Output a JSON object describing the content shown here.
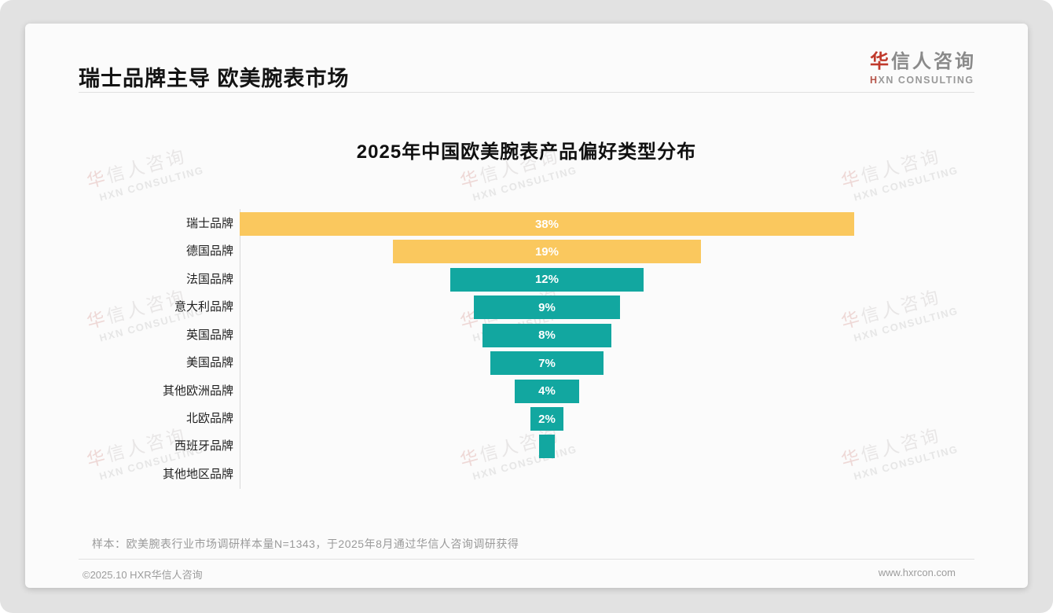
{
  "page": {
    "header": {
      "title": "瑞士品牌主导 欧美腕表市场"
    },
    "logo": {
      "zh_accent": "华",
      "zh_rest": "信人咨询",
      "en_accent": "H",
      "en_rest": "XN CONSULTING"
    },
    "watermark": {
      "zh_accent": "华",
      "zh_rest": "信人咨询",
      "en": "HXN CONSULTING"
    },
    "note": "样本：欧美腕表行业市场调研样本量N=1343，于2025年8月通过华信人咨询调研获得",
    "footer": {
      "left": "©2025.10 HXR华信人咨询",
      "right": "www.hxrcon.com"
    }
  },
  "chart_data": {
    "type": "bar",
    "subtype": "centered-funnel-horizontal",
    "title": "2025年中国欧美腕表产品偏好类型分布",
    "categories": [
      "瑞士品牌",
      "德国品牌",
      "法国品牌",
      "意大利品牌",
      "英国品牌",
      "美国品牌",
      "其他欧洲品牌",
      "北欧品牌",
      "西班牙品牌",
      "其他地区品牌"
    ],
    "values": [
      38,
      19,
      12,
      9,
      8,
      7,
      4,
      2,
      1,
      0
    ],
    "unit": "%",
    "data_labels": [
      "38%",
      "19%",
      "12%",
      "9%",
      "8%",
      "7%",
      "4%",
      "2%",
      "",
      ""
    ],
    "xlabel": "",
    "ylabel": "",
    "legend": "none",
    "grid": false,
    "colors": {
      "highlight": "#fac85e",
      "default": "#12a7a0",
      "highlight_count": 2,
      "axis_line": "#d9d9d9",
      "label_text": "#ffffff"
    }
  }
}
